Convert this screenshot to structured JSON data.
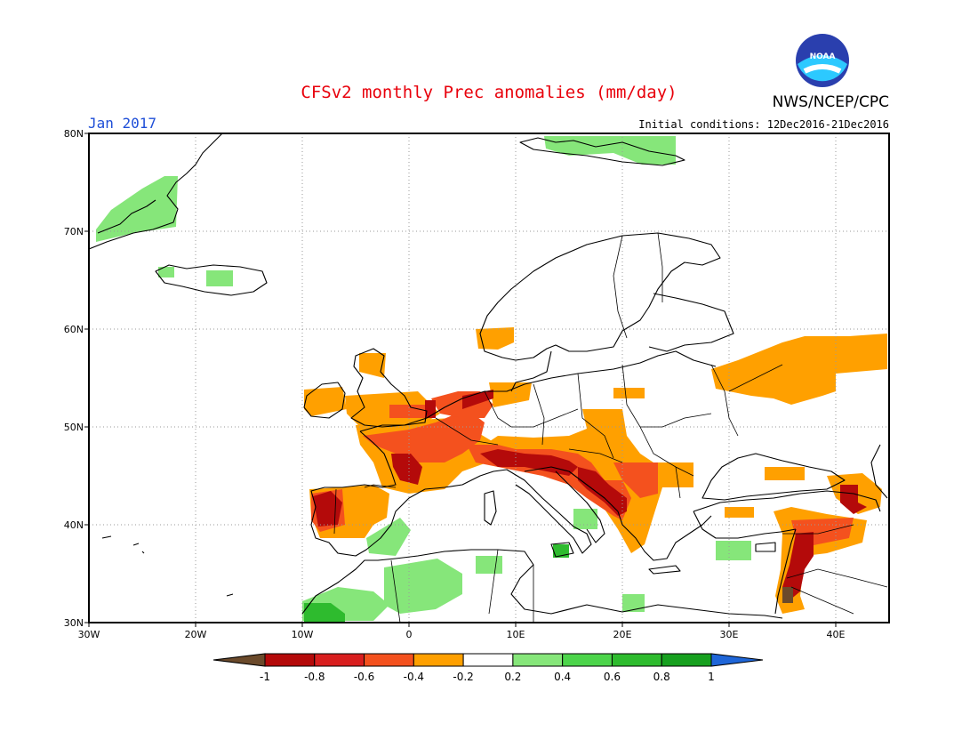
{
  "title": "CFSv2 monthly Prec anomalies (mm/day)",
  "month": "Jan 2017",
  "agency": "NWS/NCEP/CPC",
  "logo_text": "NOAA",
  "initial_conditions": "Initial conditions: 12Dec2016-21Dec2016",
  "lat_ticks": [
    "80N",
    "70N",
    "60N",
    "50N",
    "40N",
    "30N"
  ],
  "lon_ticks": [
    "30W",
    "20W",
    "10W",
    "0",
    "10E",
    "20E",
    "30E",
    "40E"
  ],
  "colorbar": {
    "labels": [
      "-1",
      "-0.8",
      "-0.6",
      "-0.4",
      "-0.2",
      "0.2",
      "0.4",
      "0.6",
      "0.8",
      "1"
    ],
    "colors": [
      "#6b4a2b",
      "#b40a0a",
      "#d81e1e",
      "#f4511e",
      "#ffa000",
      "#ffffff",
      "#86e67a",
      "#4cd44a",
      "#2ebb2e",
      "#17a01f",
      "#1f66d8"
    ]
  },
  "chart_data": {
    "type": "heatmap",
    "variable": "Prec anomalies (mm/day)",
    "lon_range": [
      -30,
      45
    ],
    "lat_range": [
      30,
      80
    ],
    "regions": [
      {
        "name": "Iberian Peninsula (west)",
        "anomaly_range": [
          -1,
          -0.6
        ]
      },
      {
        "name": "Iberian Peninsula (central/east)",
        "anomaly_range": [
          -0.4,
          -0.2
        ]
      },
      {
        "name": "France",
        "anomaly_range": [
          -0.8,
          -0.4
        ]
      },
      {
        "name": "British Isles",
        "anomaly_range": [
          -0.6,
          -0.2
        ]
      },
      {
        "name": "Alps / northern Italy",
        "anomaly_range": [
          -1,
          -0.6
        ]
      },
      {
        "name": "Adriatic / western Balkans",
        "anomaly_range": [
          -1,
          -0.6
        ]
      },
      {
        "name": "Central Europe",
        "anomaly_range": [
          -0.4,
          -0.2
        ]
      },
      {
        "name": "Western Russia",
        "anomaly_range": [
          -0.4,
          -0.2
        ]
      },
      {
        "name": "Levant",
        "anomaly_range": [
          -1,
          -0.6
        ]
      },
      {
        "name": "Eastern Anatolia / Caucasus",
        "anomaly_range": [
          -0.8,
          -0.4
        ]
      },
      {
        "name": "North Africa (Algeria/Tunisia)",
        "anomaly_range": [
          0.2,
          0.4
        ]
      },
      {
        "name": "Morocco",
        "anomaly_range": [
          0.4,
          0.8
        ]
      },
      {
        "name": "Svalbard",
        "anomaly_range": [
          0.2,
          0.4
        ]
      },
      {
        "name": "Greenland east coast",
        "anomaly_range": [
          0.2,
          0.4
        ]
      },
      {
        "name": "Sicily",
        "anomaly_range": [
          0.6,
          0.8
        ]
      }
    ]
  }
}
